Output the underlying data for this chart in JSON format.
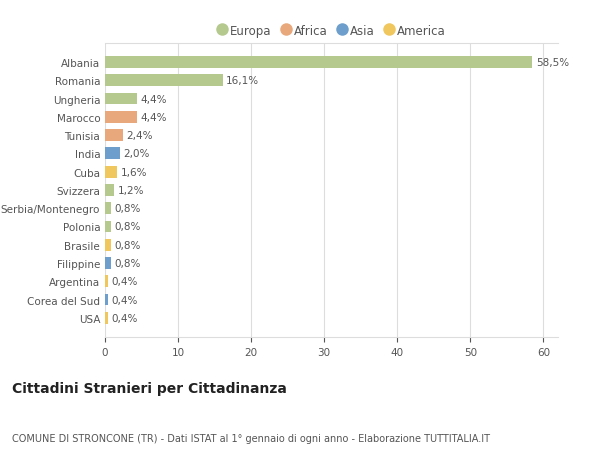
{
  "categories": [
    "Albania",
    "Romania",
    "Ungheria",
    "Marocco",
    "Tunisia",
    "India",
    "Cuba",
    "Svizzera",
    "Serbia/Montenegro",
    "Polonia",
    "Brasile",
    "Filippine",
    "Argentina",
    "Corea del Sud",
    "USA"
  ],
  "values": [
    58.5,
    16.1,
    4.4,
    4.4,
    2.4,
    2.0,
    1.6,
    1.2,
    0.8,
    0.8,
    0.8,
    0.8,
    0.4,
    0.4,
    0.4
  ],
  "labels": [
    "58,5%",
    "16,1%",
    "4,4%",
    "4,4%",
    "2,4%",
    "2,0%",
    "1,6%",
    "1,2%",
    "0,8%",
    "0,8%",
    "0,8%",
    "0,8%",
    "0,4%",
    "0,4%",
    "0,4%"
  ],
  "colors": [
    "#b5c98e",
    "#b5c98e",
    "#b5c98e",
    "#e8a87c",
    "#e8a87c",
    "#6d9ecc",
    "#f0c75e",
    "#b5c98e",
    "#b5c98e",
    "#b5c98e",
    "#f0c75e",
    "#6d9ecc",
    "#f0c75e",
    "#6d9ecc",
    "#f0c75e"
  ],
  "legend_labels": [
    "Europa",
    "Africa",
    "Asia",
    "America"
  ],
  "legend_colors": [
    "#b5c98e",
    "#e8a87c",
    "#6d9ecc",
    "#f0c75e"
  ],
  "title": "Cittadini Stranieri per Cittadinanza",
  "subtitle": "COMUNE DI STRONCONE (TR) - Dati ISTAT al 1° gennaio di ogni anno - Elaborazione TUTTITALIA.IT",
  "xlim": [
    0,
    62
  ],
  "xticks": [
    0,
    10,
    20,
    30,
    40,
    50,
    60
  ],
  "background_color": "#ffffff",
  "plot_background": "#ffffff",
  "grid_color": "#dddddd",
  "text_color": "#555555",
  "label_fontsize": 7.5,
  "tick_fontsize": 7.5,
  "title_fontsize": 10,
  "subtitle_fontsize": 7
}
